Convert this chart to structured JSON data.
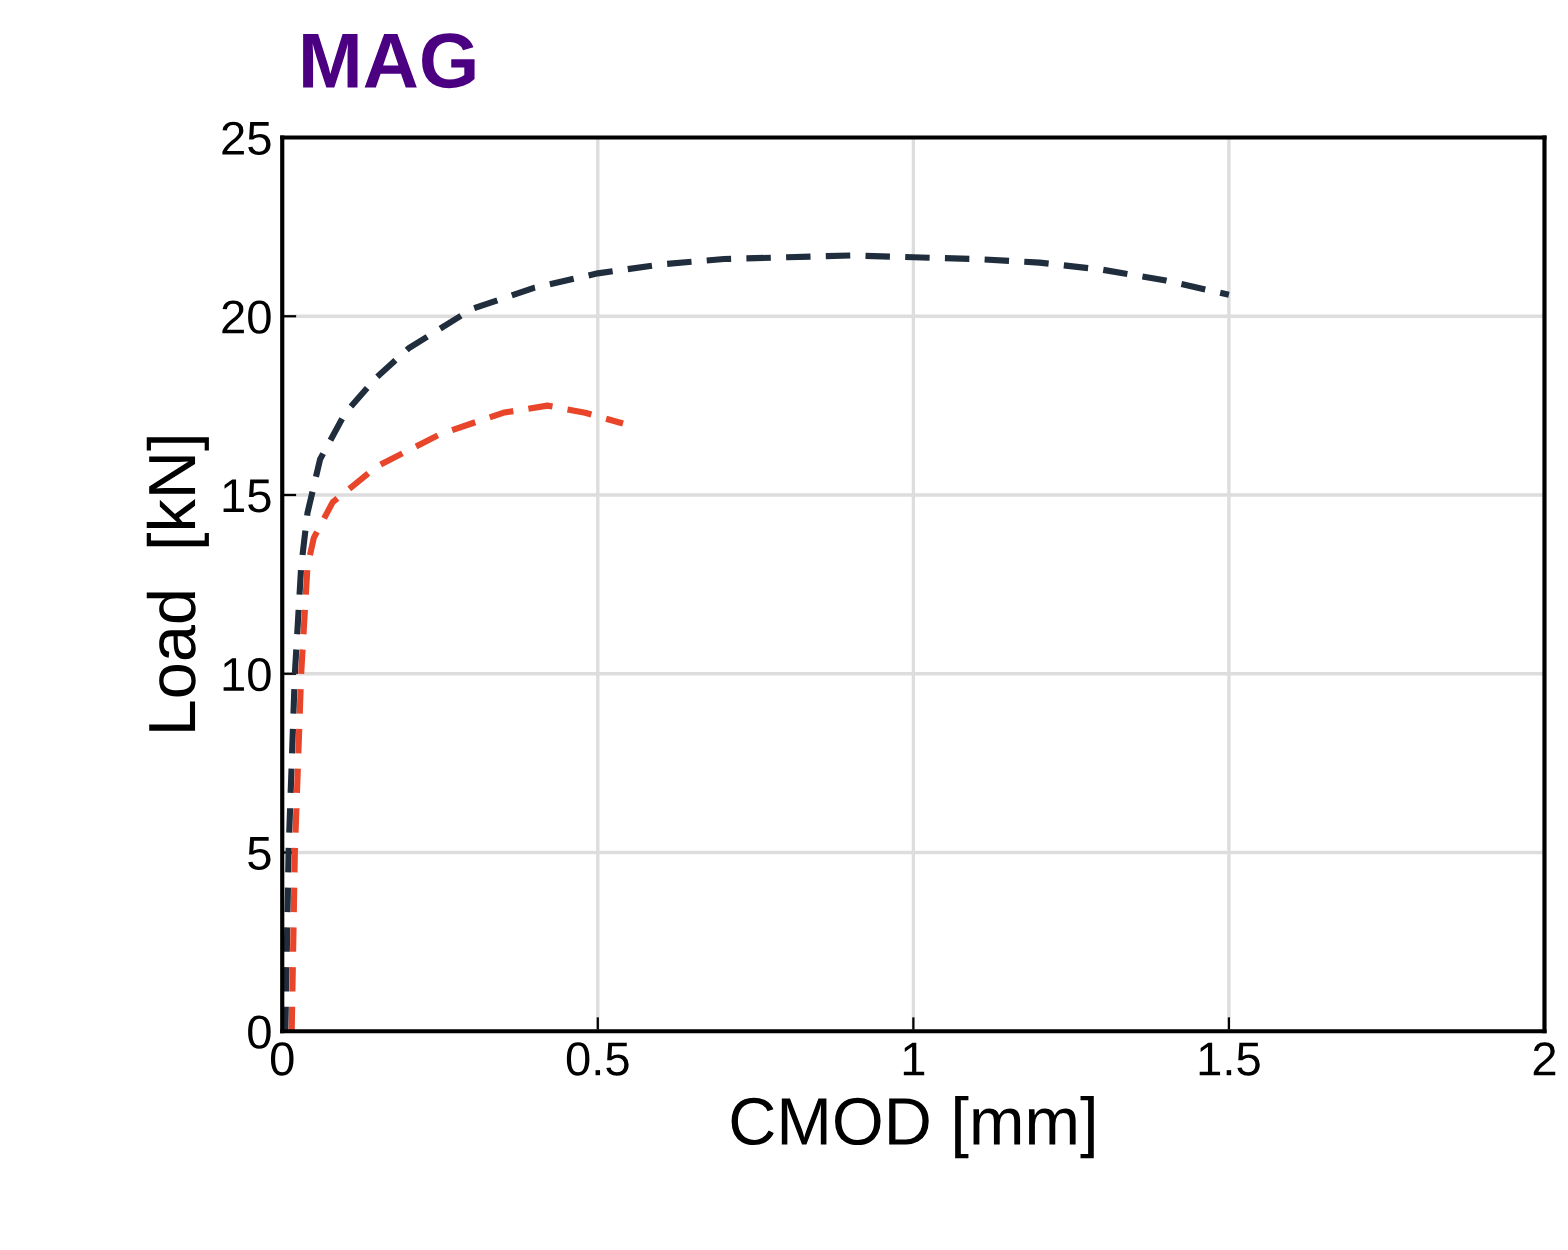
{
  "chart_data": {
    "type": "line",
    "title": "MAG",
    "xlabel": "CMOD [mm]",
    "ylabel": "Load  [kN]",
    "series": [
      {
        "color": "#1f2d3d",
        "x": [
          0.005,
          0.01,
          0.02,
          0.03,
          0.04,
          0.06,
          0.1,
          0.15,
          0.2,
          0.3,
          0.4,
          0.5,
          0.6,
          0.7,
          0.8,
          0.9,
          1.0,
          1.1,
          1.2,
          1.3,
          1.4,
          1.5
        ],
        "values": [
          0,
          5,
          10,
          13,
          14.5,
          16,
          17.3,
          18.3,
          19.1,
          20.2,
          20.8,
          21.2,
          21.45,
          21.6,
          21.65,
          21.7,
          21.65,
          21.6,
          21.5,
          21.3,
          21.0,
          20.6
        ]
      },
      {
        "color": "#e8452a",
        "x": [
          0.015,
          0.02,
          0.03,
          0.04,
          0.05,
          0.08,
          0.15,
          0.25,
          0.35,
          0.42,
          0.48,
          0.54
        ],
        "values": [
          0,
          5,
          10,
          13,
          13.8,
          14.8,
          15.8,
          16.7,
          17.3,
          17.5,
          17.3,
          17.0
        ]
      }
    ],
    "xlim": [
      0,
      2
    ],
    "xticks": [
      0,
      0.5,
      1,
      1.5,
      2
    ],
    "ylim": [
      0,
      25
    ],
    "yticks": [
      0,
      5,
      10,
      15,
      20,
      25
    ],
    "grid": true,
    "line_style": "dashed",
    "marker": "none"
  }
}
